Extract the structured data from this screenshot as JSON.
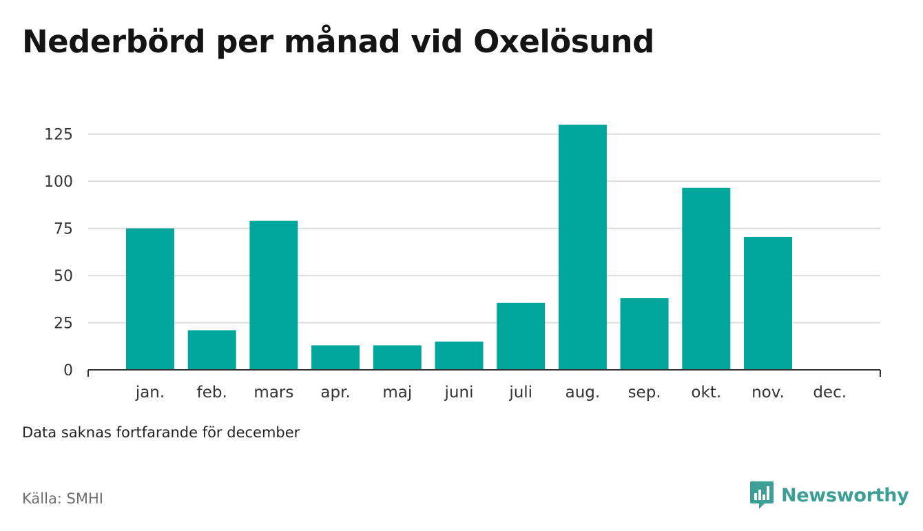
{
  "title": "Nederbörd per månad vid Oxelösund",
  "note": "Data saknas fortfarande för december",
  "source": "Källa: SMHI",
  "brand": {
    "name": "Newsworthy",
    "color": "#3c9e95",
    "icon": "newsworthy-logo-icon"
  },
  "colors": {
    "bar": "#00a59b",
    "grid": "#dcdcdc",
    "axis": "#333333"
  },
  "chart_data": {
    "type": "bar",
    "categories": [
      "jan.",
      "feb.",
      "mars",
      "apr.",
      "maj",
      "juni",
      "juli",
      "aug.",
      "sep.",
      "okt.",
      "nov.",
      "dec."
    ],
    "values": [
      75,
      21,
      79,
      13,
      13,
      15,
      35.5,
      130,
      38,
      96.5,
      70.5,
      null
    ],
    "title": "",
    "xlabel": "",
    "ylabel": "",
    "ylim": [
      0,
      130
    ],
    "yticks": [
      0,
      25,
      50,
      75,
      100,
      125
    ],
    "grid": true,
    "legend": "none"
  }
}
